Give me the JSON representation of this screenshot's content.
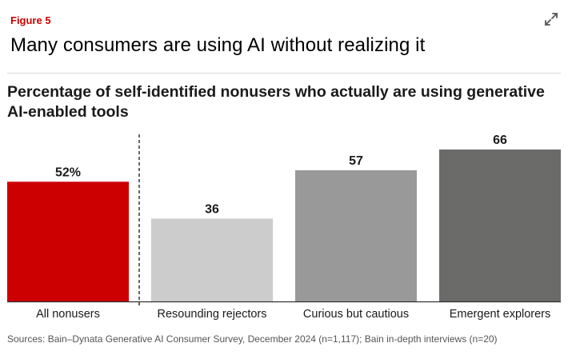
{
  "figure_label": "Figure 5",
  "headline": "Many consumers are using AI without realizing it",
  "source": "Sources: Bain–Dynata Generative AI Consumer Survey, December 2024 (n=1,117); Bain in-depth interviews (n=20)",
  "expand_icon": "expand-arrows-icon",
  "chart_data": {
    "type": "bar",
    "title": "Percentage of self-identified nonusers who actually are using generative AI-enabled tools",
    "categories": [
      "All nonusers",
      "Resounding rejectors",
      "Curious but cautious",
      "Emergent explorers"
    ],
    "values": [
      52,
      36,
      57,
      66
    ],
    "value_labels": [
      "52%",
      "36",
      "57",
      "66"
    ],
    "colors": [
      "#cc0000",
      "#cccccc",
      "#999999",
      "#6b6b69"
    ],
    "ylim": [
      0,
      66
    ],
    "xlabel": "",
    "ylabel": "",
    "separator_after_index": 0
  }
}
